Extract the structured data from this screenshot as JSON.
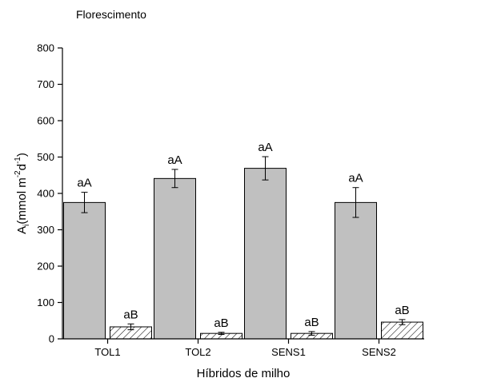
{
  "chart_data": {
    "type": "bar",
    "title": "Florescimento",
    "xlabel": "Híbridos de milho",
    "ylabel": {
      "main": "A",
      "sub": "i",
      "unit_prefix": "(mmol m",
      "exp1": "-2",
      "unit_mid": "d",
      "exp2": "-1",
      "unit_suffix": ")"
    },
    "ylim": [
      0,
      800
    ],
    "yticks": [
      0,
      100,
      200,
      300,
      400,
      500,
      600,
      700,
      800
    ],
    "categories": [
      "TOL1",
      "TOL2",
      "SENS1",
      "SENS2"
    ],
    "series": [
      {
        "values": [
          375,
          441,
          469,
          375
        ],
        "errors": [
          28,
          25,
          32,
          41
        ],
        "labels": [
          "aA",
          "aA",
          "aA",
          "aA"
        ],
        "fill": "#c0c0c0",
        "pattern": "solid"
      },
      {
        "values": [
          33,
          15,
          15,
          46
        ],
        "errors": [
          8,
          3,
          5,
          7
        ],
        "labels": [
          "aB",
          "aB",
          "aB",
          "aB"
        ],
        "fill": "#ffffff",
        "pattern": "diagonal-hatch"
      }
    ],
    "grid": false,
    "legend": "none"
  }
}
